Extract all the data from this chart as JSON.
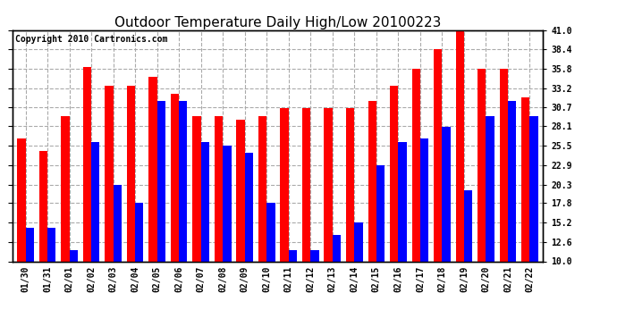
{
  "title": "Outdoor Temperature Daily High/Low 20100223",
  "copyright": "Copyright 2010 Cartronics.com",
  "dates": [
    "01/30",
    "01/31",
    "02/01",
    "02/02",
    "02/03",
    "02/04",
    "02/05",
    "02/06",
    "02/07",
    "02/08",
    "02/09",
    "02/10",
    "02/11",
    "02/12",
    "02/13",
    "02/14",
    "02/15",
    "02/16",
    "02/17",
    "02/18",
    "02/19",
    "02/20",
    "02/21",
    "02/22"
  ],
  "highs": [
    26.5,
    24.8,
    29.5,
    36.0,
    33.5,
    33.5,
    34.7,
    32.5,
    29.5,
    29.5,
    29.0,
    29.5,
    30.5,
    30.5,
    30.5,
    30.5,
    31.5,
    33.5,
    35.8,
    38.5,
    41.0,
    35.8,
    35.8,
    32.0
  ],
  "lows": [
    14.5,
    14.5,
    11.5,
    26.0,
    20.3,
    17.8,
    31.5,
    31.5,
    26.0,
    25.5,
    24.5,
    17.8,
    11.5,
    11.5,
    13.5,
    15.2,
    22.9,
    26.0,
    26.5,
    28.0,
    19.5,
    29.5,
    31.5,
    29.5
  ],
  "high_color": "#ff0000",
  "low_color": "#0000ff",
  "bg_color": "#ffffff",
  "grid_color": "#aaaaaa",
  "yticks": [
    10.0,
    12.6,
    15.2,
    17.8,
    20.3,
    22.9,
    25.5,
    28.1,
    30.7,
    33.2,
    35.8,
    38.4,
    41.0
  ],
  "ymin": 10.0,
  "ymax": 41.0,
  "title_fontsize": 11,
  "tick_fontsize": 7,
  "copyright_fontsize": 7
}
